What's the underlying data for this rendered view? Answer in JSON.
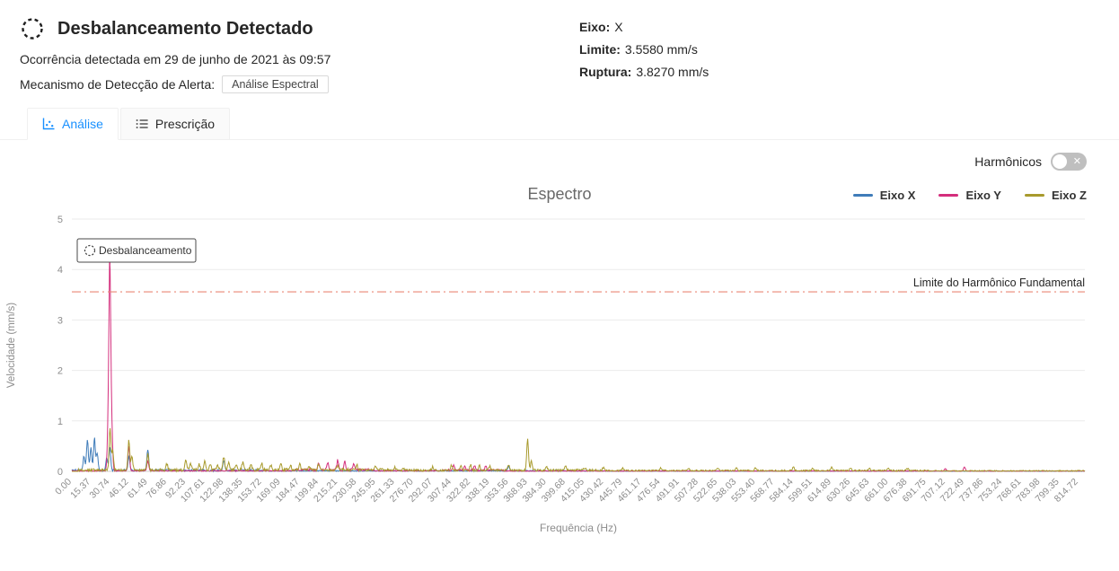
{
  "header": {
    "title": "Desbalanceamento Detectado",
    "occurrence": "Ocorrência detectada em 29 de junho de 2021 às 09:57",
    "mechanism_label": "Mecanismo de Detecção de Alerta:",
    "mechanism_value": "Análise Espectral",
    "meta": {
      "eixo_label": "Eixo:",
      "eixo_value": "X",
      "limite_label": "Limite:",
      "limite_value": "3.5580 mm/s",
      "ruptura_label": "Ruptura:",
      "ruptura_value": "3.8270 mm/s"
    }
  },
  "icons": {
    "alert": "dashed-circle-unbalance-icon",
    "analysis_tab": "dot-chart-icon",
    "prescription_tab": "list-icon",
    "switch_off": "close-icon"
  },
  "tabs": [
    {
      "label": "Análise",
      "active": true
    },
    {
      "label": "Prescrição",
      "active": false
    }
  ],
  "harmonics": {
    "label": "Harmônicos",
    "state": "off",
    "off_glyph": "✕"
  },
  "chart_data": {
    "type": "line",
    "title": "Espectro",
    "xlabel": "Frequência (Hz)",
    "ylabel": "Velocidade (mm/s)",
    "xlim": [
      0,
      820
    ],
    "ylim": [
      0,
      5
    ],
    "grid": true,
    "legend_position": "top-right",
    "y_ticks": [
      0,
      1,
      2,
      3,
      4,
      5
    ],
    "x_tick_labels": [
      "0.00",
      "15.37",
      "30.74",
      "46.12",
      "61.49",
      "76.86",
      "92.23",
      "107.61",
      "122.98",
      "138.35",
      "153.72",
      "169.09",
      "184.47",
      "199.84",
      "215.21",
      "230.58",
      "245.95",
      "261.33",
      "276.70",
      "292.07",
      "307.44",
      "322.82",
      "338.19",
      "353.56",
      "368.93",
      "384.30",
      "399.68",
      "415.05",
      "430.42",
      "445.79",
      "461.17",
      "476.54",
      "491.91",
      "507.28",
      "522.65",
      "538.03",
      "553.40",
      "568.77",
      "584.14",
      "599.51",
      "614.89",
      "630.26",
      "645.63",
      "661.00",
      "676.38",
      "691.75",
      "707.12",
      "722.49",
      "737.86",
      "753.24",
      "768.61",
      "783.98",
      "799.35",
      "814.72"
    ],
    "limit_line": {
      "value": 3.558,
      "label": "Limite do Harmônico Fundamental",
      "color": "#e98776"
    },
    "annotation": {
      "label": "Desbalanceamento",
      "x": 30.74,
      "y": 4.1,
      "color": "#d42e7c"
    },
    "peak_format": [
      "frequency_hz",
      "velocity_mm_s",
      "optional_width_hz"
    ],
    "noise_format": [
      "from_hz",
      "to_hz",
      "amplitude_mm_s"
    ],
    "series": [
      {
        "name": "Eixo X",
        "color": "#3f7cb9",
        "seed": 3,
        "peaks": [
          [
            9.8,
            0.28
          ],
          [
            12.6,
            0.62
          ],
          [
            15.4,
            0.45
          ],
          [
            18.3,
            0.66
          ],
          [
            20.5,
            0.34
          ],
          [
            28.2,
            0.25
          ],
          [
            30.74,
            0.48
          ],
          [
            46.1,
            0.28
          ],
          [
            61.5,
            0.42
          ],
          [
            122.98,
            0.2
          ],
          [
            353.6,
            0.1
          ]
        ],
        "noise": [
          [
            0,
            160,
            0.04
          ],
          [
            160,
            430,
            0.02
          ],
          [
            430,
            820,
            0.01
          ]
        ]
      },
      {
        "name": "Eixo Y",
        "color": "#d42e7c",
        "seed": 7,
        "peaks": [
          [
            30.74,
            4.1,
            0.8
          ],
          [
            29.2,
            0.55
          ],
          [
            32.4,
            0.65
          ],
          [
            46.1,
            0.5
          ],
          [
            61.5,
            0.2
          ],
          [
            199.8,
            0.14
          ],
          [
            207,
            0.16
          ],
          [
            215.2,
            0.2
          ],
          [
            221,
            0.16
          ],
          [
            228,
            0.13
          ],
          [
            309,
            0.09
          ],
          [
            318,
            0.1
          ],
          [
            326,
            0.08
          ],
          [
            335,
            0.09
          ],
          [
            707,
            0.05
          ],
          [
            722.5,
            0.08
          ]
        ],
        "noise": [
          [
            0,
            180,
            0.02
          ],
          [
            180,
            245,
            0.055
          ],
          [
            245,
            300,
            0.02
          ],
          [
            300,
            350,
            0.045
          ],
          [
            350,
            820,
            0.012
          ]
        ]
      },
      {
        "name": "Eixo Z",
        "color": "#a89a2d",
        "seed": 5,
        "peaks": [
          [
            30.9,
            0.85
          ],
          [
            33,
            0.38
          ],
          [
            46.1,
            0.6
          ],
          [
            48.6,
            0.28
          ],
          [
            61.5,
            0.33
          ],
          [
            76.9,
            0.12
          ],
          [
            92.2,
            0.22
          ],
          [
            96,
            0.14
          ],
          [
            103,
            0.12
          ],
          [
            107.6,
            0.2
          ],
          [
            112,
            0.12
          ],
          [
            118,
            0.1
          ],
          [
            123,
            0.26
          ],
          [
            127,
            0.14
          ],
          [
            133,
            0.12
          ],
          [
            138.4,
            0.16
          ],
          [
            145,
            0.1
          ],
          [
            153.7,
            0.13
          ],
          [
            161,
            0.09
          ],
          [
            169.1,
            0.12
          ],
          [
            177,
            0.08
          ],
          [
            184.5,
            0.12
          ],
          [
            192,
            0.09
          ],
          [
            199.8,
            0.11
          ],
          [
            215.2,
            0.09
          ],
          [
            230.6,
            0.1
          ],
          [
            246,
            0.07
          ],
          [
            261.3,
            0.06
          ],
          [
            292.1,
            0.07
          ],
          [
            307.4,
            0.1
          ],
          [
            315,
            0.08
          ],
          [
            322.8,
            0.11
          ],
          [
            330,
            0.09
          ],
          [
            338.2,
            0.08
          ],
          [
            353.6,
            0.1
          ],
          [
            368.93,
            0.63
          ],
          [
            372,
            0.18
          ],
          [
            384.3,
            0.07
          ],
          [
            399.7,
            0.08
          ],
          [
            415.1,
            0.05
          ],
          [
            430.4,
            0.06
          ],
          [
            445.8,
            0.05
          ],
          [
            476.5,
            0.05
          ],
          [
            499,
            0.05
          ],
          [
            522.7,
            0.06
          ],
          [
            538,
            0.05
          ],
          [
            553.4,
            0.05
          ],
          [
            584.1,
            0.07
          ],
          [
            599.5,
            0.05
          ],
          [
            614.9,
            0.06
          ],
          [
            630.3,
            0.05
          ],
          [
            645.6,
            0.05
          ],
          [
            661,
            0.04
          ],
          [
            676.4,
            0.04
          ]
        ],
        "noise": [
          [
            5,
            70,
            0.05
          ],
          [
            70,
            270,
            0.06
          ],
          [
            270,
            430,
            0.045
          ],
          [
            430,
            700,
            0.03
          ],
          [
            700,
            820,
            0.02
          ]
        ]
      }
    ]
  }
}
